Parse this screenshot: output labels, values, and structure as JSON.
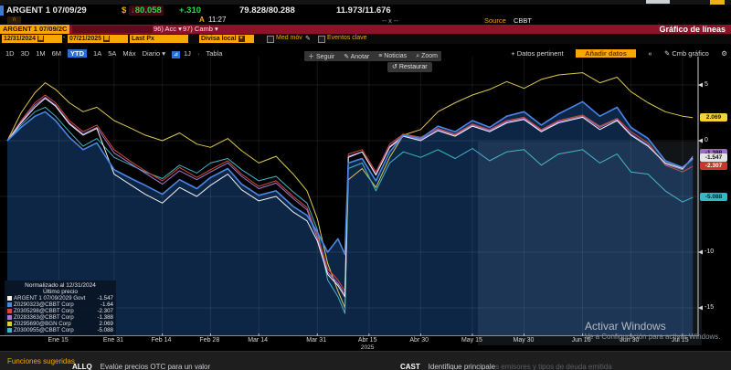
{
  "colors": {
    "amber": "#f9a606",
    "red_bar": "#8e1228",
    "tab_selected": "#2b6fd6",
    "fill_area": "#0e2849",
    "up_green": "#2fd24a",
    "down_red": "#e03030"
  },
  "quote_bar": {
    "security": "ARGENT 1 07/09/29",
    "currency_symbol": "$",
    "direction_arrow": "↓",
    "last_price": "80.058",
    "change": "+.310",
    "bid_ask": "79.828/80.288",
    "yield_bid_ask": "11.973/11.676",
    "session_flag": "A",
    "time": "11:27",
    "market_status": "-- x --",
    "source_label": "Source",
    "source_value": "CBBT"
  },
  "command_bar": {
    "ticker_chip": "ARGENT 1 07/09/2C",
    "menu_acc": "96) Acc ▾",
    "menu_camb": "97) Camb ▾",
    "screen_title": "Gráfico de líneas"
  },
  "fields_row": {
    "date_from": "12/31/2024",
    "date_sep": "-",
    "date_to": "07/21/2025",
    "price_field": "Last Px",
    "currency_field": "Divisa local",
    "mov_avg_label": "Med móv",
    "key_events_label": "Eventos clave"
  },
  "tabs": {
    "ranges": [
      "1D",
      "3D",
      "1M",
      "6M",
      "YTD",
      "1A",
      "5A",
      "Máx"
    ],
    "selected": "YTD",
    "periodicity": "Diario ▾",
    "interval": "1J",
    "dot": "·",
    "table": "Tabla",
    "datos_pertinent": "+ Datos pertinent",
    "add_data": "Añadir datos",
    "collapse": "«",
    "cmb_grafico": "Cmb gráfico"
  },
  "chart_toolbar": {
    "seguir": "Seguir",
    "anotar": "Anotar",
    "noticias": "Noticias",
    "zoom": "Zoom",
    "restaurar": "Restaurar"
  },
  "legend": {
    "title": "Normalizado al 12/31/2024",
    "subtitle": "Último precio"
  },
  "watermark": {
    "line1": "Activar Windows",
    "line2": "Ve a Configuración para activar Windows."
  },
  "bottom_bar": {
    "suggested": "Funciones sugeridas",
    "items": [
      {
        "cmd": "ALLQ",
        "desc": "Evalúe precios OTC para un valor",
        "desc_dim": ""
      },
      {
        "cmd": "CAST",
        "desc": "Identifique principale",
        "desc_dim": "s emisores y tipos de deuda emitida"
      }
    ]
  },
  "axis": {
    "y_labels": [
      {
        "v": 5,
        "label": "5"
      },
      {
        "v": 0,
        "label": "0"
      },
      {
        "v": -10,
        "label": "-10"
      },
      {
        "v": -15,
        "label": "-15"
      }
    ],
    "year_label": "2025",
    "year_day": 105
  },
  "badges": [
    {
      "label": "-1.388",
      "v": -1.388,
      "bg": "#9b6bc9",
      "fg": "#120a1c",
      "dy": -3
    },
    {
      "label": "-1.547",
      "v": -1.547,
      "bg": "#e4e4e4",
      "fg": "#141414",
      "dy": 0
    },
    {
      "label": "-2.307",
      "v": -2.307,
      "bg": "#c23a2b",
      "fg": "#ffffff",
      "dy": 0
    },
    {
      "label": "-5.088",
      "v": -5.088,
      "bg": "#35b8c8",
      "fg": "#03232a",
      "dy": 0
    },
    {
      "label": "2.069",
      "v": 2.069,
      "bg": "#f2d436",
      "fg": "#241c00",
      "dy": 0
    }
  ],
  "chart_data": {
    "type": "line",
    "title": "Gráfico de líneas",
    "subtitle": "Normalizado al 12/31/2024 — Último precio",
    "x_unit": "days since 12/31/2024",
    "x_range": [
      0,
      200
    ],
    "ylim": [
      -17.2,
      7.4
    ],
    "y_ticks": [
      5,
      0,
      -5,
      -10,
      -15
    ],
    "grid": true,
    "legend_position": "bottom-left",
    "x_tick_labels": [
      {
        "label": "Ene 15",
        "day": 15
      },
      {
        "label": "Ene 31",
        "day": 31
      },
      {
        "label": "Feb 14",
        "day": 45
      },
      {
        "label": "Feb 28",
        "day": 59
      },
      {
        "label": "Mar 14",
        "day": 73
      },
      {
        "label": "Mar 31",
        "day": 90
      },
      {
        "label": "Abr 15",
        "day": 105
      },
      {
        "label": "Abr 30",
        "day": 120
      },
      {
        "label": "May 15",
        "day": 135
      },
      {
        "label": "May 30",
        "day": 150
      },
      {
        "label": "Jun 16",
        "day": 167
      },
      {
        "label": "Jun 30",
        "day": 181
      },
      {
        "label": "Jul 15",
        "day": 196
      }
    ],
    "sample_days": [
      0,
      4,
      8,
      11,
      14,
      18,
      22,
      26,
      31,
      36,
      40,
      45,
      50,
      55,
      59,
      64,
      68,
      73,
      78,
      83,
      87,
      90,
      93,
      96,
      98,
      99,
      103,
      107,
      111,
      115,
      120,
      125,
      130,
      135,
      140,
      145,
      150,
      155,
      160,
      167,
      172,
      177,
      181,
      186,
      191,
      196,
      199
    ],
    "series": [
      {
        "name": "ARGENT 1 07/09/2029 Govt",
        "color": "#f2f2f2",
        "last_label": "-1.547",
        "values": [
          0,
          1.6,
          3.0,
          3.8,
          3.1,
          1.5,
          0.5,
          1.1,
          -3.0,
          -4.0,
          -4.8,
          -5.6,
          -4.2,
          -5.0,
          -4.0,
          -3.0,
          -4.4,
          -5.4,
          -5.0,
          -6.4,
          -7.2,
          -9.0,
          -12.0,
          -13.0,
          -14.0,
          -1.5,
          -1.0,
          -3.1,
          -0.6,
          0.4,
          0.0,
          0.9,
          0.4,
          1.3,
          0.8,
          1.6,
          1.9,
          0.8,
          1.6,
          2.1,
          1.0,
          1.8,
          0.5,
          -0.5,
          -2.0,
          -2.5,
          -1.547
        ]
      },
      {
        "name": "Z0290323@CBBT Corp",
        "color": "#4a86e8",
        "last_label": "-1.64",
        "fill": true,
        "values": [
          0,
          1.2,
          2.2,
          2.6,
          1.8,
          0.3,
          -0.8,
          -0.2,
          -2.6,
          -3.4,
          -4.0,
          -4.8,
          -3.5,
          -4.3,
          -3.3,
          -2.5,
          -3.9,
          -4.9,
          -4.5,
          -5.9,
          -6.7,
          -8.2,
          -10.0,
          -8.8,
          -10.2,
          -2.0,
          -1.6,
          -3.6,
          -1.0,
          0.5,
          0.2,
          1.3,
          0.8,
          1.8,
          1.2,
          2.2,
          2.6,
          1.4,
          2.4,
          3.5,
          2.2,
          3.0,
          1.2,
          0.2,
          -1.8,
          -2.4,
          -1.64
        ]
      },
      {
        "name": "Z0305298@CBBT Corp",
        "color": "#cf4a38",
        "last_label": "-2.307",
        "values": [
          0,
          1.8,
          3.4,
          4.1,
          3.4,
          1.8,
          0.8,
          1.4,
          -0.8,
          -1.9,
          -2.7,
          -3.6,
          -2.4,
          -3.3,
          -2.6,
          -1.8,
          -3.0,
          -4.1,
          -3.6,
          -5.0,
          -6.0,
          -8.5,
          -11.5,
          -12.5,
          -13.5,
          -1.2,
          -0.8,
          -2.8,
          -0.3,
          0.6,
          0.3,
          1.1,
          0.6,
          1.5,
          1.0,
          1.8,
          2.1,
          1.0,
          1.8,
          2.3,
          1.3,
          2.0,
          0.8,
          -0.2,
          -2.2,
          -2.8,
          -2.307
        ]
      },
      {
        "name": "Z0283363@CBBT Corp",
        "color": "#a678d8",
        "last_label": "-1.388",
        "values": [
          0,
          1.7,
          3.2,
          3.9,
          3.2,
          1.6,
          0.6,
          1.2,
          -1.1,
          -2.1,
          -2.9,
          -3.9,
          -2.7,
          -3.5,
          -2.8,
          -2.0,
          -3.2,
          -4.3,
          -3.8,
          -5.2,
          -6.2,
          -8.8,
          -11.8,
          -12.8,
          -13.8,
          -1.4,
          -1.0,
          -3.0,
          -0.5,
          0.5,
          0.1,
          1.0,
          0.5,
          1.4,
          0.9,
          1.7,
          2.0,
          0.9,
          1.7,
          2.2,
          1.2,
          1.9,
          0.6,
          -0.4,
          -2.1,
          -2.6,
          -1.388
        ]
      },
      {
        "name": "Z0295690@BGN Corp",
        "color": "#ddc94f",
        "last_label": "2.069",
        "values": [
          0,
          2.5,
          4.3,
          5.2,
          4.6,
          3.4,
          2.6,
          3.0,
          1.8,
          1.1,
          0.5,
          0.0,
          0.7,
          -0.3,
          -0.6,
          0.2,
          -0.9,
          -2.0,
          -1.4,
          -3.0,
          -4.5,
          -7.0,
          -11.0,
          -13.5,
          -15.0,
          -3.5,
          -2.5,
          -4.2,
          -1.5,
          0.5,
          1.0,
          2.6,
          3.4,
          4.1,
          4.6,
          5.3,
          4.7,
          5.5,
          5.9,
          6.1,
          5.2,
          5.7,
          4.4,
          3.4,
          2.6,
          2.2,
          2.069
        ]
      },
      {
        "name": "Z0300955@CBBT Corp",
        "color": "#3cb8c8",
        "last_label": "-5.088",
        "values": [
          0,
          1.4,
          2.6,
          3.0,
          2.2,
          0.8,
          -0.5,
          0.2,
          -1.5,
          -2.2,
          -2.8,
          -3.4,
          -2.2,
          -2.9,
          -2.0,
          -1.6,
          -2.6,
          -3.6,
          -3.2,
          -4.6,
          -5.6,
          -8.0,
          -12.5,
          -14.0,
          -15.5,
          -2.5,
          -2.0,
          -4.5,
          -2.0,
          -1.0,
          -1.5,
          -0.8,
          -1.6,
          -0.7,
          -1.8,
          -1.0,
          -0.8,
          -2.2,
          -1.2,
          -0.8,
          -2.0,
          -1.2,
          -2.8,
          -3.0,
          -4.5,
          -5.5,
          -5.088
        ]
      }
    ]
  }
}
